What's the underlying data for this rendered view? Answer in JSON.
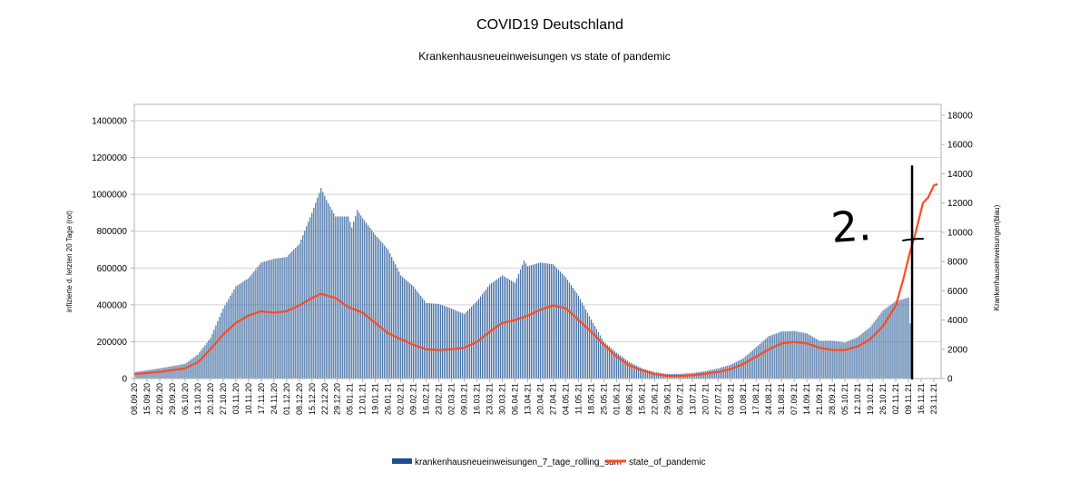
{
  "chart_data": {
    "type": "bar+line",
    "title": "COVID19 Deutschland",
    "subtitle": "Krankenhausneueinweisungen vs state of pandemic",
    "ylabel_left": "infizierte d. letzten 20 Tage (rot)",
    "ylabel_right": "Krankenhauseinweisungen(blau)",
    "ylim_left": [
      0,
      1400000
    ],
    "yticks_left": [
      "0",
      "200000",
      "400000",
      "600000",
      "800000",
      "1000000",
      "1200000",
      "1400000"
    ],
    "ylim_right": [
      0,
      18000
    ],
    "yticks_right": [
      "0",
      "2000",
      "4000",
      "6000",
      "8000",
      "10000",
      "12000",
      "14000",
      "16000",
      "18000"
    ],
    "xlim": [
      "08.09.20",
      "27.11.21"
    ],
    "x_tick_labels": [
      "08.09.20",
      "15.09.20",
      "22.09.20",
      "29.09.20",
      "06.10.20",
      "13.10.20",
      "20.10.20",
      "27.10.20",
      "03.11.20",
      "10.11.20",
      "17.11.20",
      "24.11.20",
      "01.12.20",
      "08.12.20",
      "15.12.20",
      "22.12.20",
      "29.12.20",
      "05.01.21",
      "12.01.21",
      "19.01.21",
      "26.01.21",
      "02.02.21",
      "09.02.21",
      "16.02.21",
      "23.02.21",
      "02.03.21",
      "09.03.21",
      "16.03.21",
      "23.03.21",
      "30.03.21",
      "06.04.21",
      "13.04.21",
      "20.04.21",
      "27.04.21",
      "04.05.21",
      "11.05.21",
      "18.05.21",
      "25.05.21",
      "01.06.21",
      "08.06.21",
      "15.06.21",
      "22.06.21",
      "29.06.21",
      "06.07.21",
      "13.07.21",
      "20.07.21",
      "27.07.21",
      "03.08.21",
      "10.08.21",
      "17.08.21",
      "24.08.21",
      "31.08.21",
      "07.09.21",
      "14.09.21",
      "21.09.21",
      "28.09.21",
      "05.10.21",
      "12.10.21",
      "19.10.21",
      "26.10.21",
      "02.11.21",
      "09.11.21",
      "16.11.21",
      "23.11.21"
    ],
    "series": [
      {
        "name": "krankenhausneueinweisungen_7_tage_rolling_sum",
        "type": "bar",
        "axis": "left",
        "color": "#4a74a8",
        "points": [
          [
            "08.09.20",
            35000
          ],
          [
            "22.09.20",
            55000
          ],
          [
            "06.10.20",
            80000
          ],
          [
            "13.10.20",
            130000
          ],
          [
            "20.10.20",
            220000
          ],
          [
            "27.10.20",
            380000
          ],
          [
            "03.11.20",
            500000
          ],
          [
            "10.11.20",
            545000
          ],
          [
            "17.11.20",
            630000
          ],
          [
            "24.11.20",
            650000
          ],
          [
            "01.12.20",
            660000
          ],
          [
            "08.12.20",
            730000
          ],
          [
            "15.12.20",
            900000
          ],
          [
            "20.12.20",
            1035000
          ],
          [
            "23.12.20",
            970000
          ],
          [
            "28.12.20",
            880000
          ],
          [
            "04.01.21",
            880000
          ],
          [
            "06.01.21",
            820000
          ],
          [
            "09.01.21",
            915000
          ],
          [
            "12.01.21",
            870000
          ],
          [
            "19.01.21",
            780000
          ],
          [
            "26.01.21",
            700000
          ],
          [
            "02.02.21",
            560000
          ],
          [
            "09.02.21",
            500000
          ],
          [
            "16.02.21",
            410000
          ],
          [
            "23.02.21",
            405000
          ],
          [
            "02.03.21",
            380000
          ],
          [
            "09.03.21",
            350000
          ],
          [
            "16.03.21",
            420000
          ],
          [
            "23.03.21",
            510000
          ],
          [
            "30.03.21",
            560000
          ],
          [
            "06.04.21",
            520000
          ],
          [
            "11.04.21",
            640000
          ],
          [
            "13.04.21",
            610000
          ],
          [
            "20.04.21",
            630000
          ],
          [
            "27.04.21",
            620000
          ],
          [
            "04.05.21",
            550000
          ],
          [
            "11.05.21",
            450000
          ],
          [
            "18.05.21",
            320000
          ],
          [
            "25.05.21",
            200000
          ],
          [
            "01.06.21",
            140000
          ],
          [
            "08.06.21",
            90000
          ],
          [
            "15.06.21",
            55000
          ],
          [
            "22.06.21",
            35000
          ],
          [
            "29.06.21",
            25000
          ],
          [
            "06.07.21",
            25000
          ],
          [
            "13.07.21",
            30000
          ],
          [
            "20.07.21",
            40000
          ],
          [
            "27.07.21",
            55000
          ],
          [
            "03.08.21",
            75000
          ],
          [
            "10.08.21",
            110000
          ],
          [
            "17.08.21",
            170000
          ],
          [
            "24.08.21",
            230000
          ],
          [
            "31.08.21",
            255000
          ],
          [
            "07.09.21",
            258000
          ],
          [
            "14.09.21",
            245000
          ],
          [
            "21.09.21",
            205000
          ],
          [
            "28.09.21",
            205000
          ],
          [
            "05.10.21",
            195000
          ],
          [
            "12.10.21",
            225000
          ],
          [
            "19.10.21",
            280000
          ],
          [
            "26.10.21",
            370000
          ],
          [
            "02.11.21",
            420000
          ],
          [
            "09.11.21",
            440000
          ],
          [
            "10.11.21",
            300000
          ]
        ]
      },
      {
        "name": "state_of_pandemic",
        "type": "line",
        "axis": "right",
        "color": "#ff4b1f",
        "points": [
          [
            "08.09.20",
            300
          ],
          [
            "22.09.20",
            450
          ],
          [
            "06.10.20",
            700
          ],
          [
            "13.10.20",
            1100
          ],
          [
            "20.10.20",
            2000
          ],
          [
            "27.10.20",
            3000
          ],
          [
            "03.11.20",
            3800
          ],
          [
            "10.11.20",
            4300
          ],
          [
            "17.11.20",
            4600
          ],
          [
            "24.11.20",
            4500
          ],
          [
            "01.12.20",
            4600
          ],
          [
            "08.12.20",
            5000
          ],
          [
            "15.12.20",
            5500
          ],
          [
            "20.12.20",
            5800
          ],
          [
            "28.12.20",
            5500
          ],
          [
            "04.01.21",
            4900
          ],
          [
            "12.01.21",
            4500
          ],
          [
            "19.01.21",
            3800
          ],
          [
            "26.01.21",
            3100
          ],
          [
            "02.02.21",
            2700
          ],
          [
            "09.02.21",
            2300
          ],
          [
            "16.02.21",
            2000
          ],
          [
            "23.02.21",
            1950
          ],
          [
            "02.03.21",
            2000
          ],
          [
            "09.03.21",
            2100
          ],
          [
            "16.03.21",
            2500
          ],
          [
            "23.03.21",
            3200
          ],
          [
            "30.03.21",
            3800
          ],
          [
            "06.04.21",
            4000
          ],
          [
            "13.04.21",
            4300
          ],
          [
            "20.04.21",
            4700
          ],
          [
            "27.04.21",
            5000
          ],
          [
            "04.05.21",
            4800
          ],
          [
            "11.05.21",
            4000
          ],
          [
            "18.05.21",
            3200
          ],
          [
            "25.05.21",
            2300
          ],
          [
            "01.06.21",
            1500
          ],
          [
            "08.06.21",
            900
          ],
          [
            "15.06.21",
            550
          ],
          [
            "22.06.21",
            300
          ],
          [
            "29.06.21",
            180
          ],
          [
            "06.07.21",
            180
          ],
          [
            "13.07.21",
            230
          ],
          [
            "20.07.21",
            330
          ],
          [
            "27.07.21",
            450
          ],
          [
            "03.08.21",
            650
          ],
          [
            "10.08.21",
            1000
          ],
          [
            "17.08.21",
            1500
          ],
          [
            "24.08.21",
            2000
          ],
          [
            "31.08.21",
            2400
          ],
          [
            "07.09.21",
            2500
          ],
          [
            "14.09.21",
            2400
          ],
          [
            "21.09.21",
            2100
          ],
          [
            "28.09.21",
            1950
          ],
          [
            "05.10.21",
            1950
          ],
          [
            "12.10.21",
            2200
          ],
          [
            "19.10.21",
            2700
          ],
          [
            "26.10.21",
            3600
          ],
          [
            "02.11.21",
            5000
          ],
          [
            "06.11.21",
            6700
          ],
          [
            "10.11.21",
            8700
          ],
          [
            "13.11.21",
            10000
          ],
          [
            "17.11.21",
            12000
          ],
          [
            "20.11.21",
            12400
          ],
          [
            "23.11.21",
            13200
          ],
          [
            "25.11.21",
            13300
          ]
        ]
      }
    ],
    "annotations": {
      "handwritten_text": "2.",
      "marker_line_date": "11.11.21",
      "marker_line_value_top": 14500,
      "crossbar_value": 9500
    },
    "legend_position": "bottom-center",
    "grid": true
  }
}
